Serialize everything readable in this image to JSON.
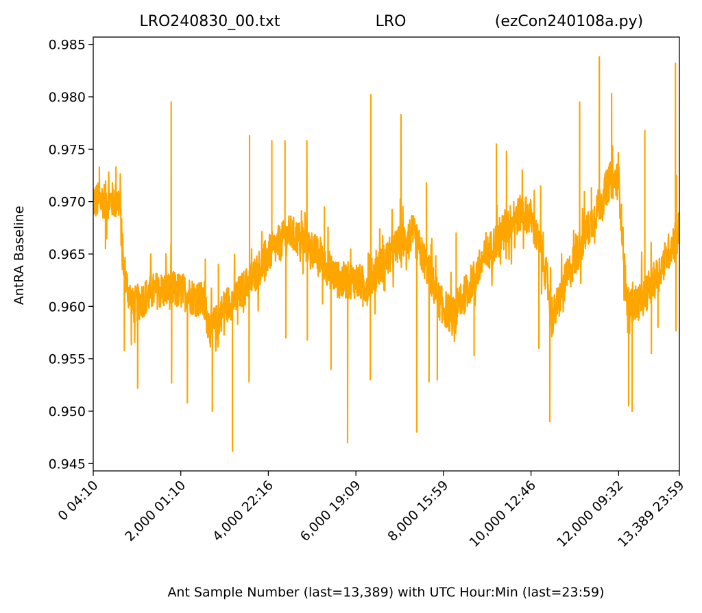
{
  "chart_data": {
    "type": "line",
    "title_parts": [
      "LRO240830_00.txt",
      "LRO",
      "(ezCon240108a.py)"
    ],
    "xlabel": "Ant Sample Number (last=13,389) with UTC Hour:Min (last=23:59)",
    "ylabel": "AntRA Baseline",
    "xlim": [
      0,
      13389
    ],
    "ylim": [
      0.9443,
      0.9857
    ],
    "x_ticks": [
      {
        "value": 0,
        "label": "0  04:10"
      },
      {
        "value": 2000,
        "label": "2,000  01:10"
      },
      {
        "value": 4000,
        "label": "4,000  22:16"
      },
      {
        "value": 6000,
        "label": "6,000  19:09"
      },
      {
        "value": 8000,
        "label": "8,000  15:59"
      },
      {
        "value": 10000,
        "label": "10,000  12:46"
      },
      {
        "value": 12000,
        "label": "12,000  09:32"
      },
      {
        "value": 13389,
        "label": "13,389  23:59"
      }
    ],
    "y_ticks": [
      {
        "value": 0.945,
        "label": "0.945"
      },
      {
        "value": 0.95,
        "label": "0.950"
      },
      {
        "value": 0.955,
        "label": "0.955"
      },
      {
        "value": 0.96,
        "label": "0.960"
      },
      {
        "value": 0.965,
        "label": "0.965"
      },
      {
        "value": 0.97,
        "label": "0.970"
      },
      {
        "value": 0.975,
        "label": "0.975"
      },
      {
        "value": 0.98,
        "label": "0.980"
      },
      {
        "value": 0.985,
        "label": "0.985"
      }
    ],
    "grid": false,
    "series": [
      {
        "color": "#ffa500",
        "trend_x": [
          0,
          300,
          600,
          700,
          900,
          1400,
          2000,
          2500,
          2700,
          3000,
          3300,
          3600,
          4000,
          4500,
          5000,
          5300,
          5600,
          6000,
          6200,
          6600,
          7000,
          7300,
          7600,
          7900,
          8200,
          8600,
          9000,
          9400,
          9800,
          10000,
          10300,
          10500,
          10800,
          11200,
          11600,
          11800,
          12000,
          12200,
          12500,
          12900,
          13389
        ],
        "trend_y": [
          0.97,
          0.9702,
          0.97,
          0.963,
          0.96,
          0.9615,
          0.9615,
          0.9605,
          0.9575,
          0.96,
          0.961,
          0.9625,
          0.965,
          0.967,
          0.9655,
          0.964,
          0.9625,
          0.9625,
          0.962,
          0.964,
          0.966,
          0.967,
          0.964,
          0.9605,
          0.959,
          0.962,
          0.965,
          0.9675,
          0.969,
          0.9685,
          0.964,
          0.959,
          0.9625,
          0.9665,
          0.97,
          0.972,
          0.972,
          0.96,
          0.9605,
          0.963,
          0.9675
        ],
        "spikes": [
          {
            "x": 1780,
            "y": 0.9795
          },
          {
            "x": 1790,
            "y": 0.9527
          },
          {
            "x": 1015,
            "y": 0.9522
          },
          {
            "x": 2150,
            "y": 0.9508
          },
          {
            "x": 2720,
            "y": 0.95
          },
          {
            "x": 3180,
            "y": 0.9462
          },
          {
            "x": 3300,
            "y": 0.9583
          },
          {
            "x": 3570,
            "y": 0.9763
          },
          {
            "x": 3560,
            "y": 0.9528
          },
          {
            "x": 4080,
            "y": 0.9758
          },
          {
            "x": 4380,
            "y": 0.9758
          },
          {
            "x": 4400,
            "y": 0.957
          },
          {
            "x": 4880,
            "y": 0.9758
          },
          {
            "x": 4890,
            "y": 0.9568
          },
          {
            "x": 5280,
            "y": 0.9695
          },
          {
            "x": 5430,
            "y": 0.954
          },
          {
            "x": 5810,
            "y": 0.947
          },
          {
            "x": 6340,
            "y": 0.9802
          },
          {
            "x": 6330,
            "y": 0.953
          },
          {
            "x": 6160,
            "y": 0.96
          },
          {
            "x": 7030,
            "y": 0.9783
          },
          {
            "x": 7390,
            "y": 0.948
          },
          {
            "x": 7610,
            "y": 0.9718
          },
          {
            "x": 7670,
            "y": 0.9528
          },
          {
            "x": 7860,
            "y": 0.953
          },
          {
            "x": 8700,
            "y": 0.9553
          },
          {
            "x": 9210,
            "y": 0.9755
          },
          {
            "x": 9440,
            "y": 0.9748
          },
          {
            "x": 10180,
            "y": 0.956
          },
          {
            "x": 10430,
            "y": 0.949
          },
          {
            "x": 10220,
            "y": 0.9715
          },
          {
            "x": 10620,
            "y": 0.9615
          },
          {
            "x": 11110,
            "y": 0.9795
          },
          {
            "x": 11560,
            "y": 0.9838
          },
          {
            "x": 11840,
            "y": 0.9803
          },
          {
            "x": 12230,
            "y": 0.9505
          },
          {
            "x": 12310,
            "y": 0.95
          },
          {
            "x": 12600,
            "y": 0.9768
          },
          {
            "x": 12750,
            "y": 0.9555
          },
          {
            "x": 13300,
            "y": 0.9832
          },
          {
            "x": 13310,
            "y": 0.9577
          },
          {
            "x": 13320,
            "y": 0.9725
          },
          {
            "x": 140,
            "y": 0.9733
          },
          {
            "x": 520,
            "y": 0.9733
          },
          {
            "x": 280,
            "y": 0.9655
          },
          {
            "x": 710,
            "y": 0.9558
          },
          {
            "x": 1950,
            "y": 0.9603
          },
          {
            "x": 2560,
            "y": 0.9645
          },
          {
            "x": 2860,
            "y": 0.964
          },
          {
            "x": 3720,
            "y": 0.962
          },
          {
            "x": 8290,
            "y": 0.967
          },
          {
            "x": 9800,
            "y": 0.973
          },
          {
            "x": 11380,
            "y": 0.9713
          },
          {
            "x": 12900,
            "y": 0.958
          }
        ]
      }
    ]
  }
}
